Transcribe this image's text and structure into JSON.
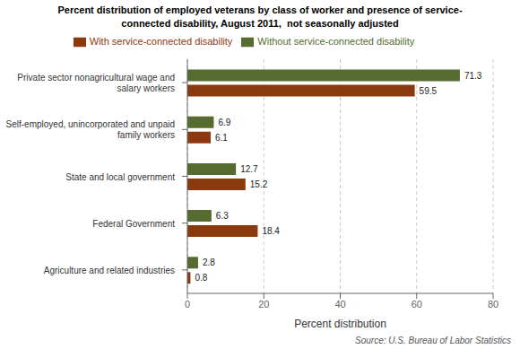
{
  "chart_data": {
    "type": "bar",
    "orientation": "horizontal",
    "title": "Percent distribution of employed veterans by class of worker and presence of service-\nconnected disability, August 2011,  not seasonally adjusted",
    "categories": [
      "Agriculture and related industries",
      "Federal Government",
      "State and local government",
      "Self-employed, unincorporated and unpaid\nfamily workers",
      "Private sector nonagricultural wage and\nsalary workers"
    ],
    "series": [
      {
        "name": "Without service-connected disability",
        "color": "#556B2F",
        "values": [
          2.8,
          6.3,
          12.7,
          6.9,
          71.3
        ]
      },
      {
        "name": "With service-connected disability",
        "color": "#8B3A0F",
        "values": [
          0.8,
          18.4,
          15.2,
          6.1,
          59.5
        ]
      }
    ],
    "xlabel": "Percent distribution",
    "xlim": [
      0,
      80
    ],
    "xticks": [
      0,
      20,
      40,
      60,
      80
    ],
    "grid": true,
    "legend": "top",
    "data_labels": true,
    "annotations": [
      "Source: U.S. Bureau of Labor Statistics"
    ]
  }
}
